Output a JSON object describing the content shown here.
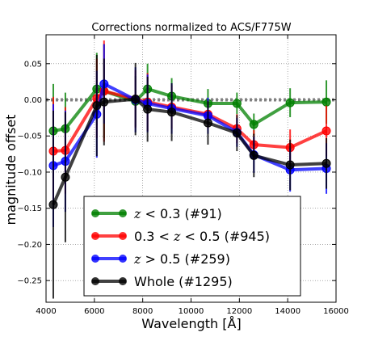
{
  "chart_data": {
    "type": "line",
    "title": "Corrections normalized to ACS/F775W",
    "xlabel": "Wavelength [Å]",
    "ylabel": "magnitude offset",
    "xlim": [
      4000,
      16000
    ],
    "ylim": [
      -0.28,
      0.09
    ],
    "x_ticks": [
      4000,
      6000,
      8000,
      10000,
      12000,
      14000,
      16000
    ],
    "x_tick_labels": [
      "4000",
      "6000",
      "8000",
      "10000",
      "12000",
      "14000",
      "16000"
    ],
    "y_ticks": [
      0.05,
      0.0,
      -0.05,
      -0.1,
      -0.15,
      -0.2,
      -0.25
    ],
    "y_tick_labels": [
      "0.05",
      "0.00",
      "−0.05",
      "−0.10",
      "−0.15",
      "−0.20",
      "−0.25"
    ],
    "grid": true,
    "reference_line": {
      "y": 0.0,
      "style": "dotted",
      "color": "#808080"
    },
    "legend_position": "lower-left",
    "series": [
      {
        "legend_label": "z < 0.3 (#91)",
        "legend_z": "z",
        "legend_before": "",
        "legend_after": " < 0.3 (#91)",
        "color": "#008000",
        "x": [
          4300,
          4800,
          6100,
          6400,
          7700,
          8200,
          9200,
          10700,
          11900,
          12600,
          14100,
          15600
        ],
        "y": [
          -0.043,
          -0.04,
          0.015,
          0.012,
          -0.002,
          0.015,
          0.005,
          -0.005,
          -0.005,
          -0.034,
          -0.004,
          -0.003
        ],
        "err": [
          0.065,
          0.05,
          0.05,
          0.065,
          0.035,
          0.035,
          0.025,
          0.02,
          0.015,
          0.015,
          0.02,
          0.03
        ]
      },
      {
        "legend_label": "0.3 < z < 0.5 (#945)",
        "legend_z": "z",
        "legend_before": "0.3 < ",
        "legend_after": " < 0.5 (#945)",
        "color": "#ff0000",
        "x": [
          4300,
          4800,
          6100,
          6400,
          7700,
          8200,
          9200,
          10700,
          11900,
          12600,
          14100,
          15600
        ],
        "y": [
          -0.071,
          -0.07,
          0.002,
          0.012,
          0.001,
          -0.003,
          -0.01,
          -0.02,
          -0.04,
          -0.062,
          -0.066,
          -0.043
        ],
        "err": [
          0.075,
          0.06,
          0.055,
          0.07,
          0.04,
          0.04,
          0.03,
          0.02,
          0.02,
          0.02,
          0.025,
          0.035
        ]
      },
      {
        "legend_label": "z > 0.5 (#259)",
        "legend_z": "z",
        "legend_before": "",
        "legend_after": " > 0.5 (#259)",
        "color": "#0000ff",
        "x": [
          4300,
          4800,
          6100,
          6400,
          7700,
          8200,
          9200,
          10700,
          11900,
          12600,
          14100,
          15600
        ],
        "y": [
          -0.091,
          -0.085,
          -0.02,
          0.022,
          0.0,
          -0.005,
          -0.012,
          -0.022,
          -0.045,
          -0.076,
          -0.097,
          -0.095
        ],
        "err": [
          0.085,
          0.07,
          0.06,
          0.055,
          0.045,
          0.04,
          0.035,
          0.025,
          0.02,
          0.025,
          0.03,
          0.035
        ]
      },
      {
        "legend_label": "Whole (#1295)",
        "legend_z": "",
        "legend_before": "Whole (#1295)",
        "legend_after": "",
        "color": "#000000",
        "x": [
          4300,
          4800,
          6100,
          6400,
          7700,
          8200,
          9200,
          10700,
          11900,
          12600,
          14100,
          15600
        ],
        "y": [
          -0.145,
          -0.107,
          -0.008,
          -0.003,
          0.001,
          -0.013,
          -0.017,
          -0.032,
          -0.046,
          -0.077,
          -0.09,
          -0.088
        ],
        "err": [
          0.13,
          0.09,
          0.07,
          0.06,
          0.05,
          0.045,
          0.04,
          0.03,
          0.025,
          0.03,
          0.035,
          0.035
        ]
      }
    ]
  }
}
